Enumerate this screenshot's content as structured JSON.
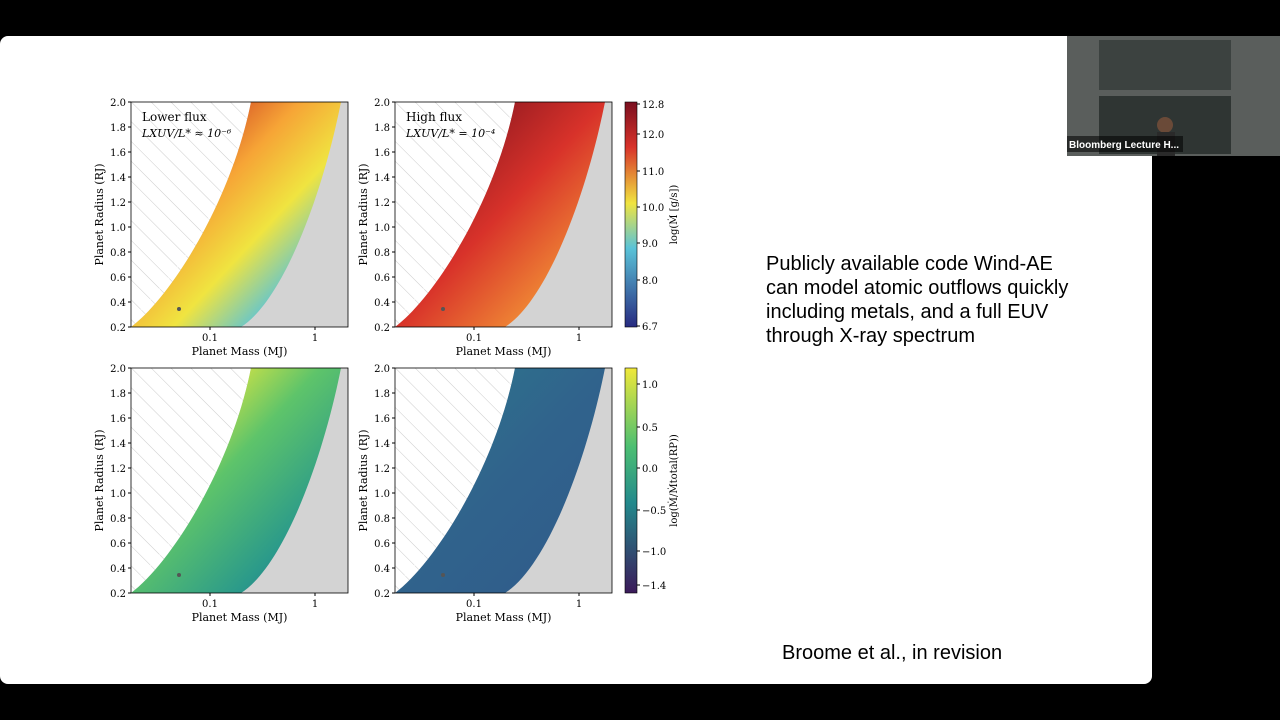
{
  "video": {
    "caption": "Bloomberg Lecture H..."
  },
  "slide": {
    "text": "Publicly available code Wind-AE can model atomic outflows quickly including metals, and a full EUV through X-ray spectrum",
    "citation": "Broome et al., in revision"
  },
  "figure": {
    "top_panels": [
      {
        "label": "Lower flux",
        "formula": "LXUV/L* ≈ 10⁻⁶"
      },
      {
        "label": "High flux",
        "formula": "LXUV/L* = 10⁻⁴"
      }
    ],
    "y_label": "Planet Radius (RJ)",
    "x_label": "Planet Mass (MJ)",
    "y_ticks": [
      "2.0",
      "1.8",
      "1.6",
      "1.4",
      "1.2",
      "1.0",
      "0.8",
      "0.6",
      "0.4",
      "0.2"
    ],
    "x_ticks": [
      "0.1",
      "1"
    ],
    "colorbar_top": {
      "label": "log(Ṁ [g/s])",
      "ticks": [
        "12.8",
        "12.0",
        "11.0",
        "10.0",
        "9.0",
        "8.0",
        "6.7"
      ]
    },
    "colorbar_bottom": {
      "label": "log(Ṁ/Ṁtotal(RP))",
      "ticks": [
        "1.0",
        "0.5",
        "0.0",
        "−0.5",
        "−1.0",
        "−1.4"
      ]
    }
  }
}
